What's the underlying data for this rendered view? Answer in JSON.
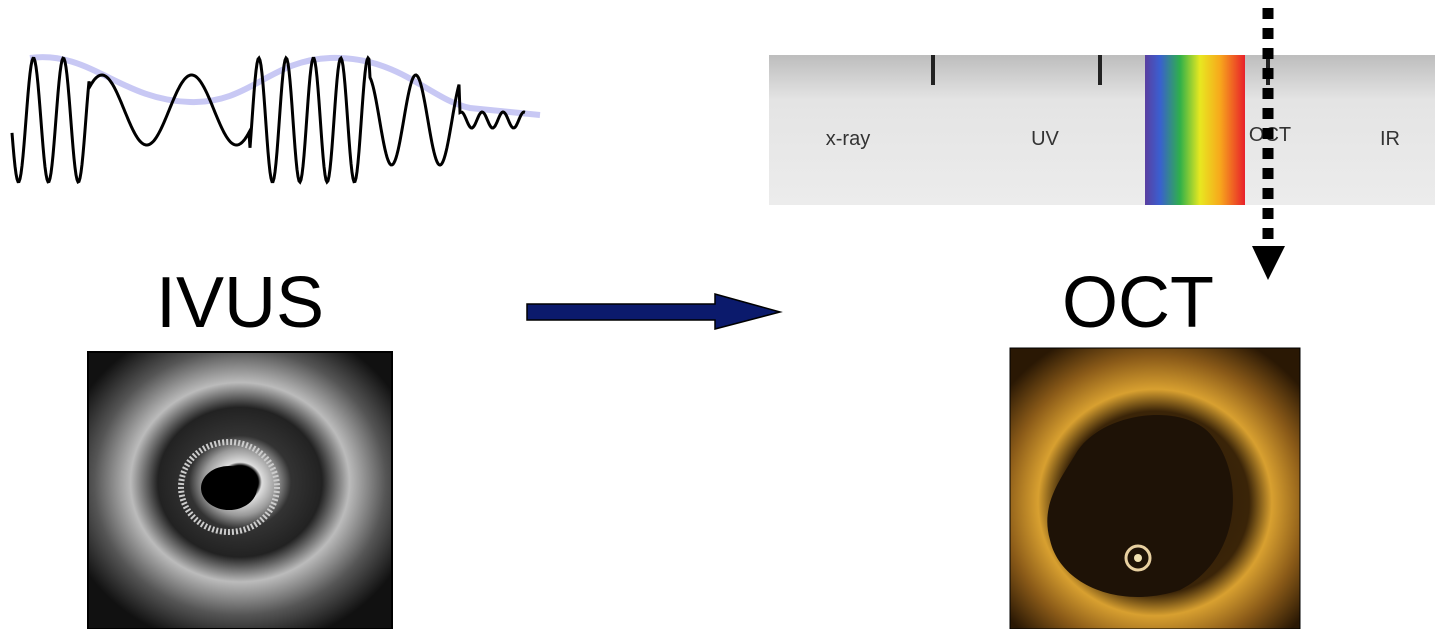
{
  "labels": {
    "left": "IVUS",
    "right": "OCT"
  },
  "spectrum": {
    "bands": [
      "x-ray",
      "UV",
      "OCT",
      "IR"
    ]
  }
}
